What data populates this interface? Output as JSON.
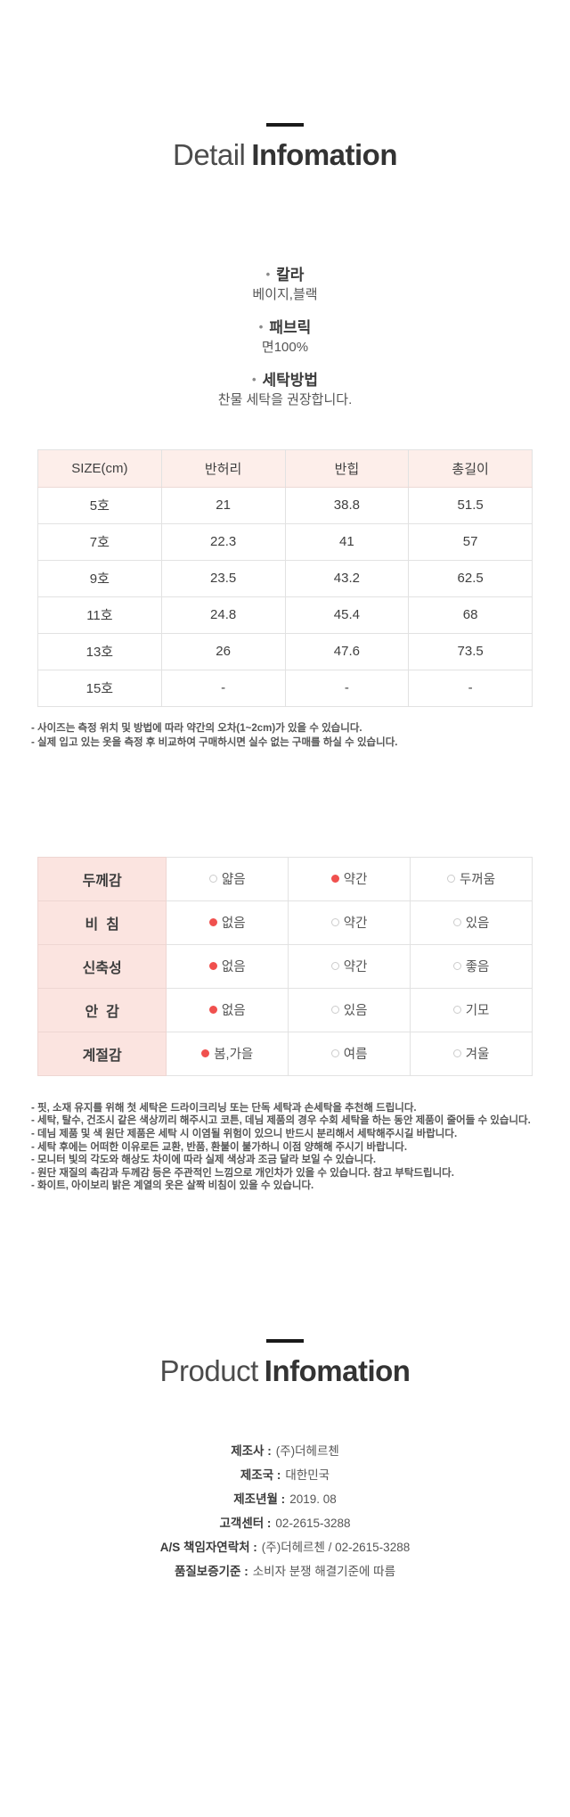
{
  "colors": {
    "accent_red": "#f0504e",
    "header_pink": "#fdeeea",
    "label_col_pink": "#fbe4e0",
    "dash_black": "#1a1a1a"
  },
  "detail_section": {
    "title_light": "Detail",
    "title_bold": "Infomation",
    "bullet": "•",
    "specs": [
      {
        "label": "칼라",
        "value": "베이지,블랙"
      },
      {
        "label": "패브릭",
        "value": "면100%"
      },
      {
        "label": "세탁방법",
        "value": "찬물 세탁을 권장합니다."
      }
    ]
  },
  "size_table": {
    "headers": [
      "SIZE(cm)",
      "반허리",
      "반힙",
      "총길이"
    ],
    "rows": [
      [
        "5호",
        "21",
        "38.8",
        "51.5"
      ],
      [
        "7호",
        "22.3",
        "41",
        "57"
      ],
      [
        "9호",
        "23.5",
        "43.2",
        "62.5"
      ],
      [
        "11호",
        "24.8",
        "45.4",
        "68"
      ],
      [
        "13호",
        "26",
        "47.6",
        "73.5"
      ],
      [
        "15호",
        "-",
        "-",
        "-"
      ]
    ],
    "notes": [
      "- 사이즈는 측정 위치 및 방법에 따라 약간의 오차(1~2cm)가 있을 수 있습니다.",
      "- 실제 입고 있는 옷을 측정 후 비교하여 구매하시면 실수 없는 구매를 하실 수 있습니다."
    ]
  },
  "attribute_table": {
    "rows": [
      {
        "label": "두께감",
        "options": [
          {
            "text": "얇음",
            "selected": false
          },
          {
            "text": "약간",
            "selected": true
          },
          {
            "text": "두꺼움",
            "selected": false
          }
        ]
      },
      {
        "label": "비  침",
        "options": [
          {
            "text": "없음",
            "selected": true
          },
          {
            "text": "약간",
            "selected": false
          },
          {
            "text": "있음",
            "selected": false
          }
        ]
      },
      {
        "label": "신축성",
        "options": [
          {
            "text": "없음",
            "selected": true
          },
          {
            "text": "약간",
            "selected": false
          },
          {
            "text": "좋음",
            "selected": false
          }
        ]
      },
      {
        "label": "안  감",
        "options": [
          {
            "text": "없음",
            "selected": true
          },
          {
            "text": "있음",
            "selected": false
          },
          {
            "text": "기모",
            "selected": false
          }
        ]
      },
      {
        "label": "계절감",
        "options": [
          {
            "text": "봄,가을",
            "selected": true
          },
          {
            "text": "여름",
            "selected": false
          },
          {
            "text": "겨울",
            "selected": false
          }
        ]
      }
    ],
    "notes": [
      "- 핏, 소재 유지를 위해 첫 세탁은 드라이크리닝 또는 단독 세탁과 손세탁을 추천해 드립니다.",
      "- 세탁, 탈수, 건조시 같은 색상끼리 해주시고 코튼, 데님 제품의 경우 수회 세탁을 하는 동안 제품이 줄어들 수 있습니다.",
      "- 데님 제품 및 색 원단 제품은 세탁 시 이염될 위험이 있으니 반드시 분리해서 세탁해주시길 바랍니다.",
      "- 세탁 후에는 어떠한 이유로든 교환, 반품, 환불이 불가하니 이점 양해해 주시기 바랍니다.",
      "- 모니터 빛의 각도와 해상도 차이에 따라 실제 색상과 조금 달라 보일 수 있습니다.",
      "- 원단 재질의 촉감과 두께감 등은 주관적인 느낌으로 개인차가 있을 수 있습니다. 참고 부탁드립니다.",
      "- 화이트, 아이보리 밝은 계열의 옷은 살짝 비침이 있을 수 있습니다."
    ]
  },
  "product_section": {
    "title_light": "Product",
    "title_bold": "Infomation",
    "items": [
      {
        "label": "제조사 :",
        "value": "(주)더헤르첸"
      },
      {
        "label": "제조국 :",
        "value": "대한민국"
      },
      {
        "label": "제조년월 :",
        "value": "2019. 08"
      },
      {
        "label": "고객센터 :",
        "value": "02-2615-3288"
      },
      {
        "label": "A/S 책임자연락처 :",
        "value": "(주)더헤르첸 / 02-2615-3288"
      },
      {
        "label": "품질보증기준 :",
        "value": "소비자 분쟁 해결기준에 따름"
      }
    ]
  }
}
